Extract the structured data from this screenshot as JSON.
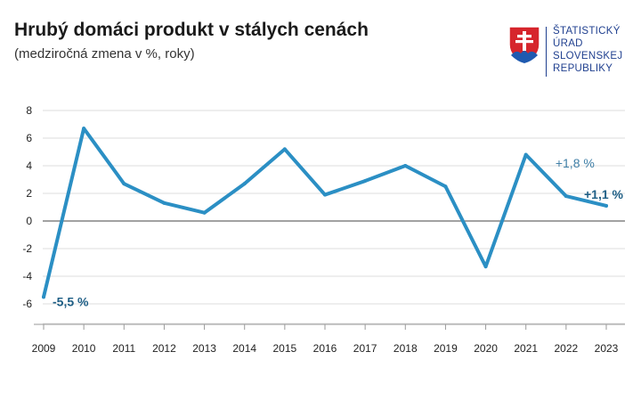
{
  "header": {
    "title": "Hrubý domáci produkt v stálych cenách",
    "subtitle": "(medziročná zmena v %, roky)"
  },
  "logo": {
    "icon": "slovak-coat-of-arms-icon",
    "lines": [
      "ŠTATISTICKÝ",
      "ÚRAD",
      "SLOVENSKEJ",
      "REPUBLIKY"
    ],
    "text_color": "#1f3f8f"
  },
  "chart_data": {
    "type": "line",
    "title": "Hrubý domáci produkt v stálych cenách",
    "subtitle": "(medziročná zmena v %, roky)",
    "xlabel": "",
    "ylabel": "",
    "x": [
      "2009",
      "2010",
      "2011",
      "2012",
      "2013",
      "2014",
      "2015",
      "2016",
      "2017",
      "2018",
      "2019",
      "2020",
      "2021",
      "2022",
      "2023"
    ],
    "series": [
      {
        "values": [
          -5.5,
          6.7,
          2.7,
          1.3,
          0.6,
          2.7,
          5.2,
          1.9,
          2.9,
          4.0,
          2.5,
          -3.3,
          4.8,
          1.8,
          1.1
        ]
      }
    ],
    "yticks": [
      "8",
      "6",
      "4",
      "2",
      "0",
      "-2",
      "-4",
      "-6"
    ],
    "ytick_values": [
      8,
      6,
      4,
      2,
      0,
      -2,
      -4,
      -6
    ],
    "ylim": [
      -7.5,
      8
    ],
    "grid": true,
    "line_color": "#2b8fc4",
    "annotations": [
      {
        "x": "2009",
        "y": -5.5,
        "text": "-5,5 %",
        "bold": true,
        "color": "#1f5f86"
      },
      {
        "x": "2022",
        "y": 1.8,
        "text": "+1,8 %",
        "bold": false,
        "color": "#3e7ea6"
      },
      {
        "x": "2023",
        "y": 1.1,
        "text": "+1,1 %",
        "bold": true,
        "color": "#1f5f86"
      }
    ]
  }
}
